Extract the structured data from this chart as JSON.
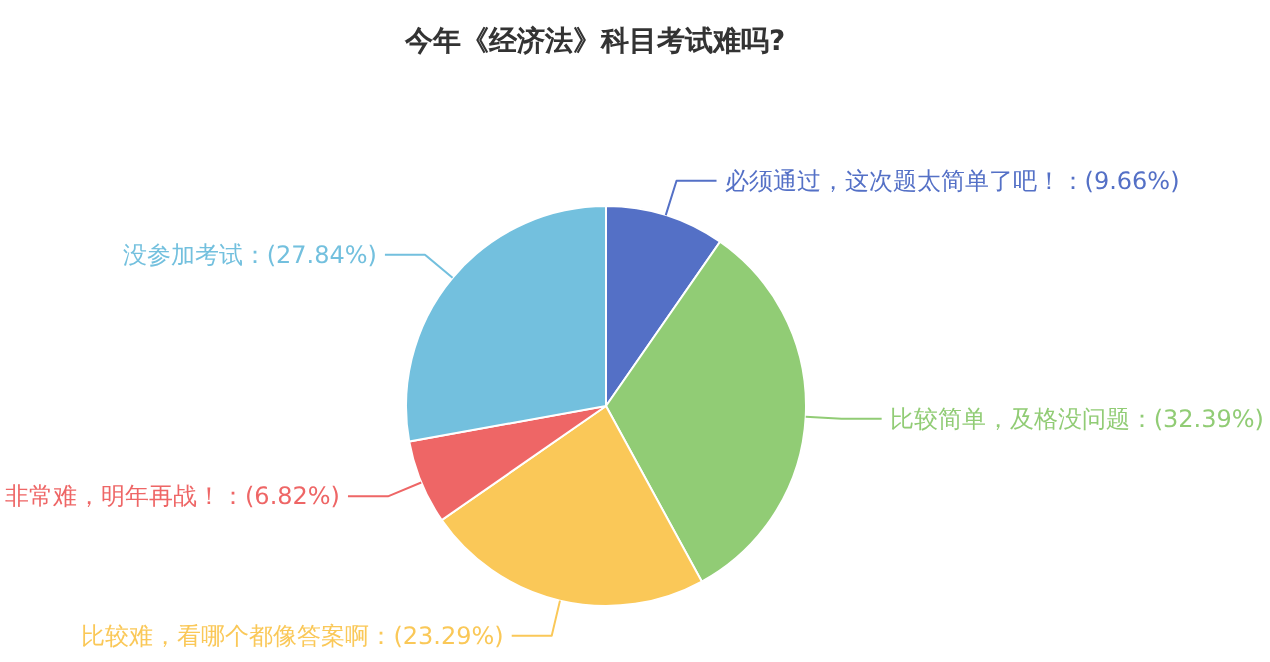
{
  "chart_data": {
    "type": "pie",
    "title": "今年《经济法》科目考试难吗?",
    "categories": [
      "必须通过，这次题太简单了吧！",
      "比较简单，及格没问题",
      "比较难，看哪个都像答案啊",
      "非常难，明年再战！",
      "没参加考试"
    ],
    "values": [
      9.66,
      32.39,
      23.29,
      6.82,
      27.84
    ],
    "value_labels": [
      "(9.66%)",
      "(32.39%)",
      "(23.29%)",
      "(6.82%)",
      "(27.84%)"
    ],
    "colors": [
      "#5470c6",
      "#91cc75",
      "#fac858",
      "#ee6666",
      "#73c0de"
    ],
    "legend": false
  }
}
